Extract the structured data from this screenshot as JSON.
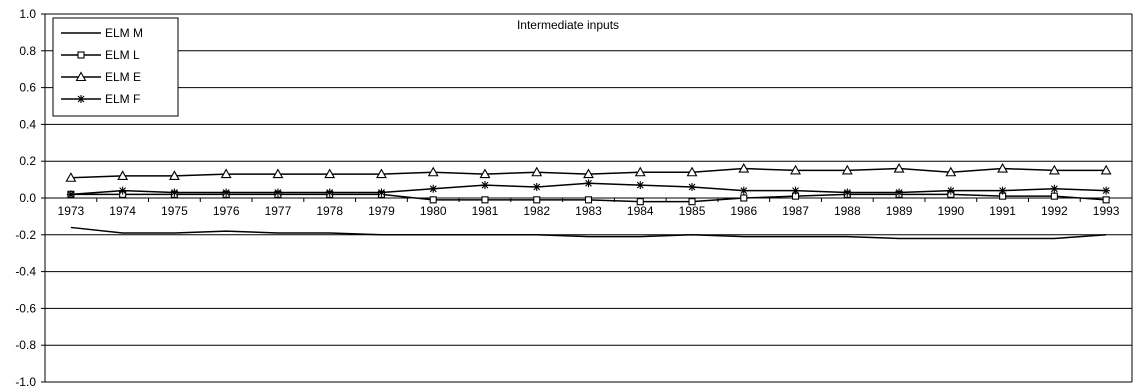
{
  "chart_data": {
    "type": "line",
    "title": "Intermediate inputs",
    "xlabel": "",
    "ylabel": "",
    "ylim": [
      -1.0,
      1.0
    ],
    "yticks": [
      "1.0",
      "0.8",
      "0.6",
      "0.4",
      "0.2",
      "0.0",
      "-0.2",
      "-0.4",
      "-0.6",
      "-0.8",
      "-1.0"
    ],
    "ytick_values": [
      1.0,
      0.8,
      0.6,
      0.4,
      0.2,
      0.0,
      -0.2,
      -0.4,
      -0.6,
      -0.8,
      -1.0
    ],
    "categories": [
      "1973",
      "1974",
      "1975",
      "1976",
      "1977",
      "1978",
      "1979",
      "1980",
      "1981",
      "1982",
      "1983",
      "1984",
      "1985",
      "1986",
      "1987",
      "1988",
      "1989",
      "1990",
      "1991",
      "1992",
      "1993"
    ],
    "grid": "horizontal",
    "legend_position": "top-left",
    "series": [
      {
        "name": "ELM M",
        "marker": "none",
        "values": [
          -0.16,
          -0.19,
          -0.19,
          -0.18,
          -0.19,
          -0.19,
          -0.2,
          -0.2,
          -0.2,
          -0.2,
          -0.21,
          -0.21,
          -0.2,
          -0.21,
          -0.21,
          -0.21,
          -0.22,
          -0.22,
          -0.22,
          -0.22,
          -0.2
        ]
      },
      {
        "name": "ELM L",
        "marker": "square",
        "values": [
          0.02,
          0.02,
          0.02,
          0.02,
          0.02,
          0.02,
          0.02,
          -0.01,
          -0.01,
          -0.01,
          -0.01,
          -0.02,
          -0.02,
          0.0,
          0.01,
          0.02,
          0.02,
          0.02,
          0.01,
          0.01,
          -0.01
        ]
      },
      {
        "name": "ELM E",
        "marker": "triangle",
        "values": [
          0.11,
          0.12,
          0.12,
          0.13,
          0.13,
          0.13,
          0.13,
          0.14,
          0.13,
          0.14,
          0.13,
          0.14,
          0.14,
          0.16,
          0.15,
          0.15,
          0.16,
          0.14,
          0.16,
          0.15,
          0.15
        ]
      },
      {
        "name": "ELM F",
        "marker": "star",
        "values": [
          0.02,
          0.04,
          0.03,
          0.03,
          0.03,
          0.03,
          0.03,
          0.05,
          0.07,
          0.06,
          0.08,
          0.07,
          0.06,
          0.04,
          0.04,
          0.03,
          0.03,
          0.04,
          0.04,
          0.05,
          0.04
        ]
      }
    ]
  }
}
